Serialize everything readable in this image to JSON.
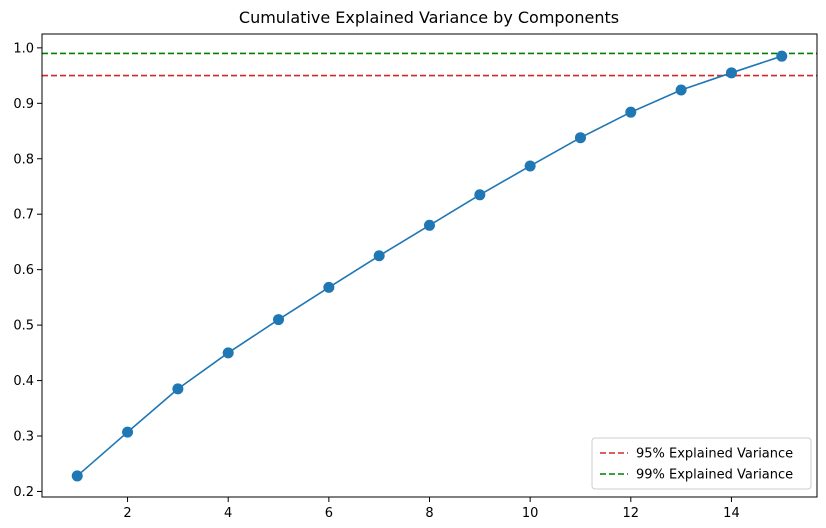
{
  "chart_data": {
    "type": "line",
    "title": "Cumulative Explained Variance by Components",
    "xlabel": "",
    "ylabel": "",
    "xlim": [
      0.3,
      15.7
    ],
    "ylim": [
      0.19,
      1.025
    ],
    "x_ticks": [
      2,
      4,
      6,
      8,
      10,
      12,
      14
    ],
    "y_ticks": [
      0.2,
      0.3,
      0.4,
      0.5,
      0.6,
      0.7,
      0.8,
      0.9,
      1.0
    ],
    "x_tick_labels": [
      "2",
      "4",
      "6",
      "8",
      "10",
      "12",
      "14"
    ],
    "y_tick_labels": [
      "0.2",
      "0.3",
      "0.4",
      "0.5",
      "0.6",
      "0.7",
      "0.8",
      "0.9",
      "1.0"
    ],
    "grid": false,
    "legend_position": "lower-right",
    "series": [
      {
        "color": "#1f77b4",
        "marker": "circle",
        "x": [
          1,
          2,
          3,
          4,
          5,
          6,
          7,
          8,
          9,
          10,
          11,
          12,
          13,
          14,
          15
        ],
        "y": [
          0.228,
          0.307,
          0.385,
          0.45,
          0.51,
          0.568,
          0.625,
          0.68,
          0.735,
          0.787,
          0.838,
          0.884,
          0.924,
          0.955,
          0.985
        ]
      }
    ],
    "reference_lines": [
      {
        "name": "95% Explained Variance",
        "y": 0.95,
        "color": "#d62728",
        "style": "dashed"
      },
      {
        "name": "99% Explained Variance",
        "y": 0.99,
        "color": "#008000",
        "style": "dashed"
      }
    ]
  }
}
